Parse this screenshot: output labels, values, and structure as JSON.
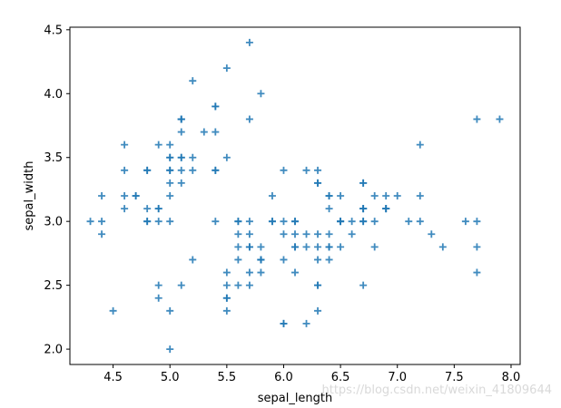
{
  "chart_data": {
    "type": "scatter",
    "title": "",
    "xlabel": "sepal_length",
    "ylabel": "sepal_width",
    "xlim": [
      4.12,
      8.08
    ],
    "ylim": [
      1.88,
      4.52
    ],
    "xticks": [
      "4.5",
      "5.0",
      "5.5",
      "6.0",
      "6.5",
      "7.0",
      "7.5",
      "8.0"
    ],
    "yticks": [
      "2.0",
      "2.5",
      "3.0",
      "3.5",
      "4.0",
      "4.5"
    ],
    "marker": "plus",
    "color": "#1f77b4",
    "grid": false,
    "points": [
      [
        5.1,
        3.5
      ],
      [
        4.9,
        3.0
      ],
      [
        4.7,
        3.2
      ],
      [
        4.6,
        3.1
      ],
      [
        5.0,
        3.6
      ],
      [
        5.4,
        3.9
      ],
      [
        4.6,
        3.4
      ],
      [
        5.0,
        3.4
      ],
      [
        4.4,
        2.9
      ],
      [
        4.9,
        3.1
      ],
      [
        5.4,
        3.7
      ],
      [
        4.8,
        3.4
      ],
      [
        4.8,
        3.0
      ],
      [
        4.3,
        3.0
      ],
      [
        5.8,
        4.0
      ],
      [
        5.7,
        4.4
      ],
      [
        5.4,
        3.9
      ],
      [
        5.1,
        3.5
      ],
      [
        5.7,
        3.8
      ],
      [
        5.1,
        3.8
      ],
      [
        5.4,
        3.4
      ],
      [
        5.1,
        3.7
      ],
      [
        4.6,
        3.6
      ],
      [
        5.1,
        3.3
      ],
      [
        4.8,
        3.4
      ],
      [
        5.0,
        3.0
      ],
      [
        5.0,
        3.4
      ],
      [
        5.2,
        3.5
      ],
      [
        5.2,
        3.4
      ],
      [
        4.7,
        3.2
      ],
      [
        4.8,
        3.1
      ],
      [
        5.4,
        3.4
      ],
      [
        5.2,
        4.1
      ],
      [
        5.5,
        4.2
      ],
      [
        4.9,
        3.1
      ],
      [
        5.0,
        3.2
      ],
      [
        5.5,
        3.5
      ],
      [
        4.9,
        3.6
      ],
      [
        4.4,
        3.0
      ],
      [
        5.1,
        3.4
      ],
      [
        5.0,
        3.5
      ],
      [
        4.5,
        2.3
      ],
      [
        4.4,
        3.2
      ],
      [
        5.0,
        3.5
      ],
      [
        5.1,
        3.8
      ],
      [
        4.8,
        3.0
      ],
      [
        5.1,
        3.8
      ],
      [
        4.6,
        3.2
      ],
      [
        5.3,
        3.7
      ],
      [
        5.0,
        3.3
      ],
      [
        7.0,
        3.2
      ],
      [
        6.4,
        3.2
      ],
      [
        6.9,
        3.1
      ],
      [
        5.5,
        2.3
      ],
      [
        6.5,
        2.8
      ],
      [
        5.7,
        2.8
      ],
      [
        6.3,
        3.3
      ],
      [
        4.9,
        2.4
      ],
      [
        6.6,
        2.9
      ],
      [
        5.2,
        2.7
      ],
      [
        5.0,
        2.0
      ],
      [
        5.9,
        3.0
      ],
      [
        6.0,
        2.2
      ],
      [
        6.1,
        2.9
      ],
      [
        5.6,
        2.9
      ],
      [
        6.7,
        3.1
      ],
      [
        5.6,
        3.0
      ],
      [
        5.8,
        2.7
      ],
      [
        6.2,
        2.2
      ],
      [
        5.6,
        2.5
      ],
      [
        5.9,
        3.2
      ],
      [
        6.1,
        2.8
      ],
      [
        6.3,
        2.5
      ],
      [
        6.1,
        2.8
      ],
      [
        6.4,
        2.9
      ],
      [
        6.6,
        3.0
      ],
      [
        6.8,
        2.8
      ],
      [
        6.7,
        3.0
      ],
      [
        6.0,
        2.9
      ],
      [
        5.7,
        2.6
      ],
      [
        5.5,
        2.4
      ],
      [
        5.5,
        2.4
      ],
      [
        5.8,
        2.7
      ],
      [
        6.0,
        2.7
      ],
      [
        5.4,
        3.0
      ],
      [
        6.0,
        3.4
      ],
      [
        6.7,
        3.1
      ],
      [
        6.3,
        2.3
      ],
      [
        5.6,
        3.0
      ],
      [
        5.5,
        2.5
      ],
      [
        5.5,
        2.6
      ],
      [
        6.1,
        3.0
      ],
      [
        5.8,
        2.6
      ],
      [
        5.0,
        2.3
      ],
      [
        5.6,
        2.7
      ],
      [
        5.7,
        3.0
      ],
      [
        5.7,
        2.9
      ],
      [
        6.2,
        2.9
      ],
      [
        5.1,
        2.5
      ],
      [
        5.7,
        2.8
      ],
      [
        6.3,
        3.3
      ],
      [
        5.8,
        2.7
      ],
      [
        7.1,
        3.0
      ],
      [
        6.3,
        2.9
      ],
      [
        6.5,
        3.0
      ],
      [
        7.6,
        3.0
      ],
      [
        4.9,
        2.5
      ],
      [
        7.3,
        2.9
      ],
      [
        6.7,
        2.5
      ],
      [
        7.2,
        3.6
      ],
      [
        6.5,
        3.2
      ],
      [
        6.4,
        2.7
      ],
      [
        6.8,
        3.0
      ],
      [
        5.7,
        2.5
      ],
      [
        5.8,
        2.8
      ],
      [
        6.4,
        3.2
      ],
      [
        6.5,
        3.0
      ],
      [
        7.7,
        3.8
      ],
      [
        7.7,
        2.6
      ],
      [
        6.0,
        2.2
      ],
      [
        6.9,
        3.2
      ],
      [
        5.6,
        2.8
      ],
      [
        7.7,
        2.8
      ],
      [
        6.3,
        2.7
      ],
      [
        6.7,
        3.3
      ],
      [
        7.2,
        3.2
      ],
      [
        6.2,
        2.8
      ],
      [
        6.1,
        3.0
      ],
      [
        6.4,
        2.8
      ],
      [
        7.2,
        3.0
      ],
      [
        7.4,
        2.8
      ],
      [
        7.9,
        3.8
      ],
      [
        6.4,
        2.8
      ],
      [
        6.3,
        2.8
      ],
      [
        6.1,
        2.6
      ],
      [
        7.7,
        3.0
      ],
      [
        6.3,
        3.4
      ],
      [
        6.4,
        3.1
      ],
      [
        6.0,
        3.0
      ],
      [
        6.9,
        3.1
      ],
      [
        6.7,
        3.1
      ],
      [
        6.9,
        3.1
      ],
      [
        5.8,
        2.7
      ],
      [
        6.8,
        3.2
      ],
      [
        6.7,
        3.3
      ],
      [
        6.7,
        3.0
      ],
      [
        6.3,
        2.5
      ],
      [
        6.5,
        3.0
      ],
      [
        6.2,
        3.4
      ],
      [
        5.9,
        3.0
      ]
    ]
  },
  "watermark": "https://blog.csdn.net/weixin_41809644"
}
